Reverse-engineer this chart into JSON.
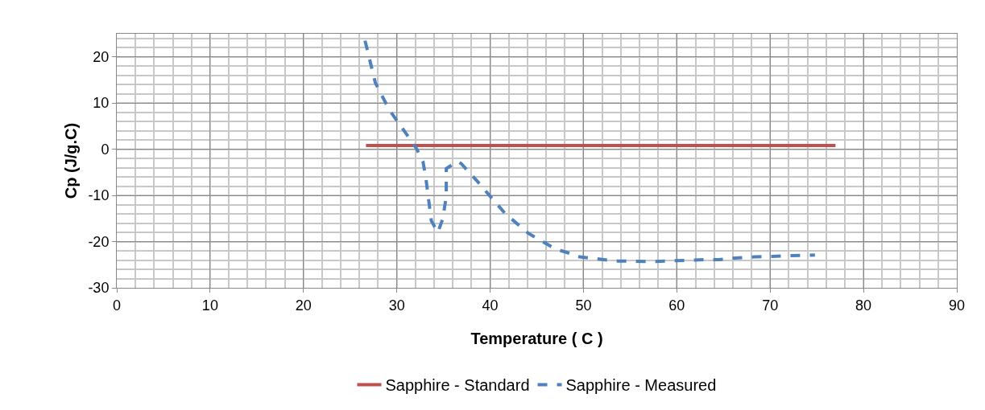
{
  "chart_data": {
    "type": "line",
    "xlabel": "Temperature ( C )",
    "ylabel": "Cp (J/g.C)",
    "xlim": [
      0,
      90
    ],
    "xticks": [
      0,
      10,
      20,
      30,
      40,
      50,
      60,
      70,
      80,
      90
    ],
    "ylim": [
      -30,
      25
    ],
    "yticks": [
      -30,
      -20,
      -10,
      0,
      10,
      20
    ],
    "grid": true,
    "legend": "bottom",
    "marker": "none",
    "series": [
      {
        "name": "Sapphire - Standard",
        "color": "#c0504d",
        "line_style": "solid",
        "x": [
          26.7,
          77
        ],
        "values": [
          0.8,
          0.8
        ]
      },
      {
        "name": "Sapphire - Measured",
        "color": "#4f81bd",
        "line_style": "dashed",
        "x": [
          26.6,
          27.7,
          29.2,
          31.1,
          32.1,
          32.8,
          33.1,
          33.3,
          33.7,
          34.4,
          34.9,
          35.3,
          35.3,
          36.5,
          36.9,
          38.7,
          39.5,
          41.6,
          44.1,
          47,
          48.8,
          49.2,
          53.4,
          57.4,
          59,
          63.2,
          64.5,
          66.6,
          68.4,
          73.1,
          74.8
        ],
        "values": [
          23.5,
          14.4,
          8.5,
          3.1,
          0.2,
          -2.6,
          -6,
          -9.2,
          -15.5,
          -18,
          -15.2,
          -10.3,
          -4.2,
          -2.6,
          -3.1,
          -7.1,
          -9,
          -13.9,
          -18.2,
          -21.6,
          -22.7,
          -23.2,
          -24.2,
          -24.3,
          -24.2,
          -23.9,
          -23.9,
          -23.5,
          -23.3,
          -23,
          -22.9
        ]
      }
    ]
  }
}
